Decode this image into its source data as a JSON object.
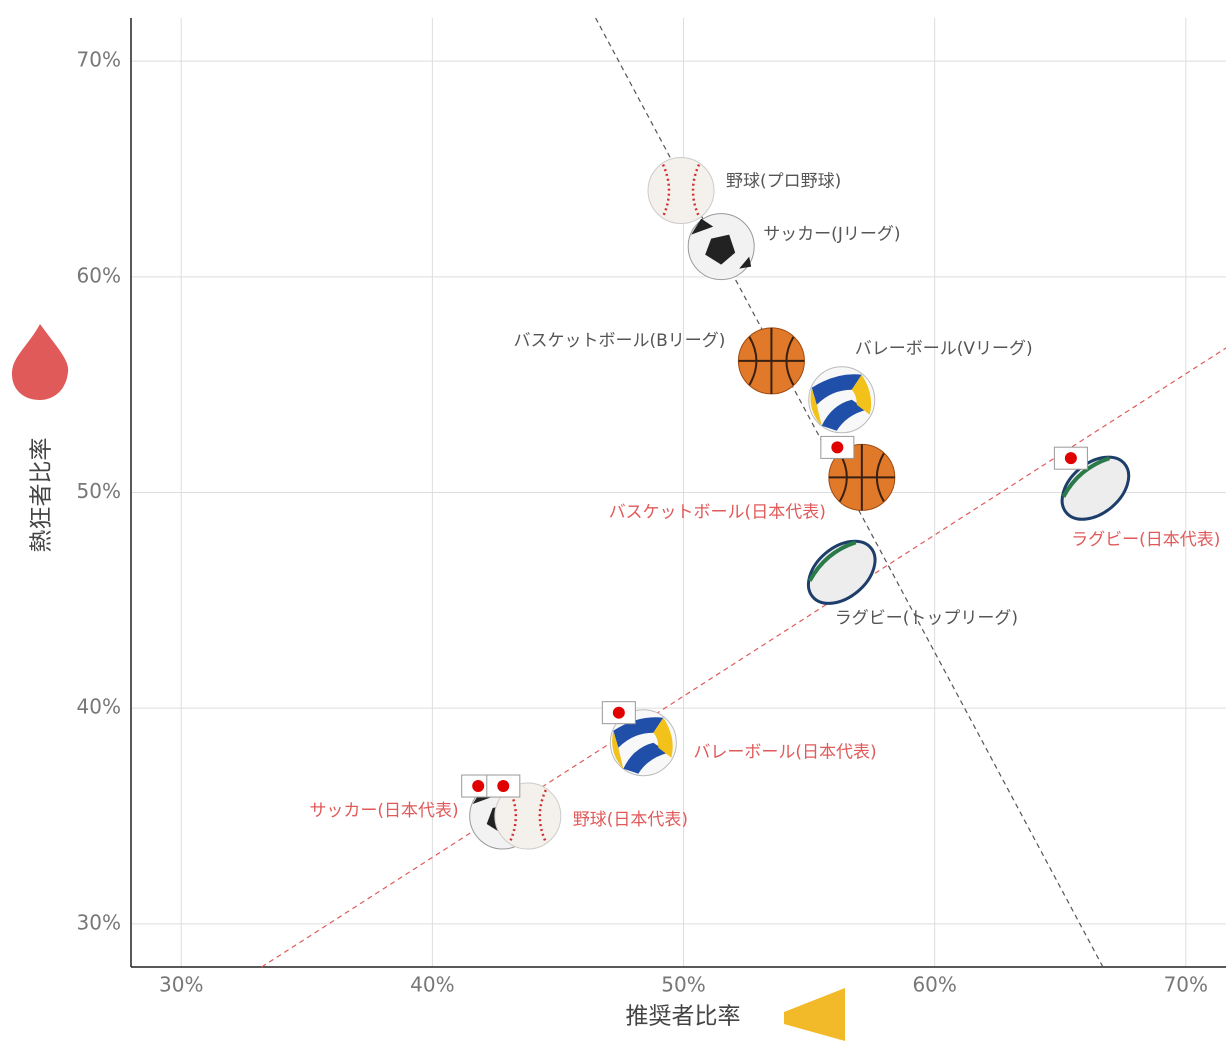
{
  "chart_data": {
    "type": "scatter",
    "xlabel": "推奨者比率",
    "ylabel": "熱狂者比率",
    "labels": [
      "野球(プロ野球)",
      "サッカー(Jリーグ)",
      "バスケットボール(Bリーグ)",
      "バレーボール(Vリーグ)",
      "バスケットボール(日本代表)",
      "ラグビー(日本代表)",
      "ラグビー(トップリーグ)",
      "バレーボール(日本代表)",
      "サッカー(日本代表)",
      "野球(日本代表)"
    ],
    "x": [
      49.9,
      51.5,
      53.5,
      56.3,
      57.1,
      66.4,
      56.3,
      48.4,
      42.8,
      43.8
    ],
    "values": [
      64.0,
      61.4,
      56.1,
      54.3,
      50.7,
      50.2,
      46.3,
      38.4,
      35.0,
      35.0
    ],
    "markers": [
      "baseball",
      "soccer",
      "basketball",
      "volleyball",
      "basketball",
      "rugby",
      "rugby",
      "volleyball",
      "soccer",
      "baseball"
    ],
    "flags": [
      false,
      false,
      false,
      false,
      true,
      true,
      false,
      true,
      true,
      true
    ],
    "label_colors": [
      "#555555",
      "#555555",
      "#555555",
      "#555555",
      "#e05a5a",
      "#e05a5a",
      "#555555",
      "#e05a5a",
      "#e05a5a",
      "#e05a5a"
    ],
    "lines": [
      {
        "x": [
          46.5,
          66.7
        ],
        "y": [
          72,
          28
        ],
        "color": "#555555"
      },
      {
        "x": [
          33.2,
          71.6
        ],
        "y": [
          28,
          56.7
        ],
        "color": "#e05a5a"
      }
    ],
    "xlim": [
      28,
      71.6
    ],
    "ylim": [
      28,
      72
    ],
    "xticks": [
      {
        "value": 30,
        "label": "30%"
      },
      {
        "value": 40,
        "label": "40%"
      },
      {
        "value": 50,
        "label": "50%"
      },
      {
        "value": 60,
        "label": "60%"
      },
      {
        "value": 70,
        "label": "70%"
      }
    ],
    "yticks": [
      {
        "value": 30,
        "label": "30%"
      },
      {
        "value": 40,
        "label": "40%"
      },
      {
        "value": 50,
        "label": "50%"
      },
      {
        "value": 60,
        "label": "60%"
      },
      {
        "value": 70,
        "label": "70%"
      }
    ],
    "grid": true
  }
}
